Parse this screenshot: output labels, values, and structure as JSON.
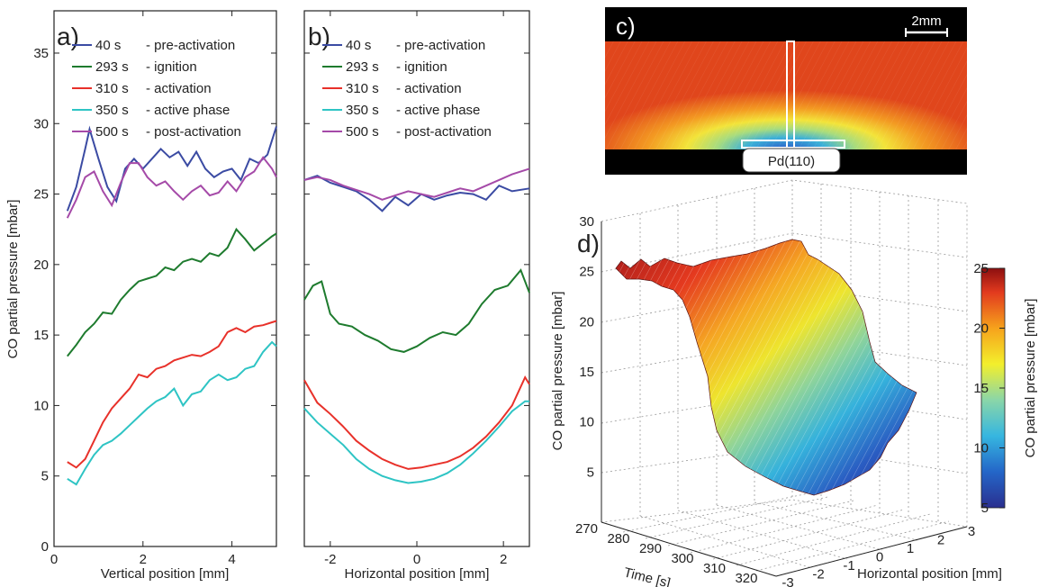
{
  "legend_entries": [
    {
      "time": "40 s",
      "label": "- pre-activation",
      "color": "#3b4ba3"
    },
    {
      "time": "293 s",
      "label": "- ignition",
      "color": "#1e7b2e"
    },
    {
      "time": "310 s",
      "label": "- activation",
      "color": "#e8312a"
    },
    {
      "time": "350 s",
      "label": "- active phase",
      "color": "#2ec4c4"
    },
    {
      "time": "500 s",
      "label": "- post-activation",
      "color": "#a54aa8"
    }
  ],
  "chart_data": [
    {
      "panel": "a)",
      "type": "line",
      "xlabel": "Vertical position [mm]",
      "ylabel": "CO partial pressure [mbar]",
      "xlim": [
        0,
        5
      ],
      "ylim": [
        0,
        38
      ],
      "xticks": [
        0,
        2,
        4
      ],
      "yticks": [
        0,
        5,
        10,
        15,
        20,
        25,
        30,
        35
      ],
      "grid": false,
      "legend_position": "top-left",
      "series": [
        {
          "name": "40 s - pre-activation",
          "color": "#3b4ba3",
          "x": [
            0.3,
            0.5,
            0.7,
            0.8,
            1.0,
            1.2,
            1.4,
            1.6,
            1.8,
            2.0,
            2.2,
            2.4,
            2.6,
            2.8,
            3.0,
            3.2,
            3.4,
            3.6,
            3.8,
            4.0,
            4.2,
            4.4,
            4.6,
            4.8,
            5.0
          ],
          "y": [
            23.8,
            25.5,
            28.2,
            29.6,
            27.5,
            25.5,
            24.5,
            26.8,
            27.5,
            26.8,
            27.5,
            28.2,
            27.6,
            28.0,
            27.0,
            28.0,
            26.8,
            26.2,
            26.6,
            26.8,
            26.0,
            27.5,
            27.2,
            27.8,
            29.8
          ]
        },
        {
          "name": "293 s - ignition",
          "color": "#1e7b2e",
          "x": [
            0.3,
            0.5,
            0.7,
            0.9,
            1.1,
            1.3,
            1.5,
            1.7,
            1.9,
            2.1,
            2.3,
            2.5,
            2.7,
            2.9,
            3.1,
            3.3,
            3.5,
            3.7,
            3.9,
            4.1,
            4.3,
            4.5,
            4.7,
            4.9,
            5.0
          ],
          "y": [
            13.5,
            14.3,
            15.2,
            15.8,
            16.6,
            16.5,
            17.5,
            18.2,
            18.8,
            19.0,
            19.2,
            19.8,
            19.6,
            20.2,
            20.4,
            20.2,
            20.8,
            20.6,
            21.2,
            22.5,
            21.8,
            21.0,
            21.5,
            22.0,
            22.2
          ]
        },
        {
          "name": "310 s - activation",
          "color": "#e8312a",
          "x": [
            0.3,
            0.5,
            0.7,
            0.9,
            1.1,
            1.3,
            1.5,
            1.7,
            1.9,
            2.1,
            2.3,
            2.5,
            2.7,
            2.9,
            3.1,
            3.3,
            3.5,
            3.7,
            3.9,
            4.1,
            4.3,
            4.5,
            4.7,
            4.9,
            5.0
          ],
          "y": [
            6.0,
            5.6,
            6.2,
            7.5,
            8.8,
            9.8,
            10.5,
            11.2,
            12.2,
            12.0,
            12.6,
            12.8,
            13.2,
            13.4,
            13.6,
            13.5,
            13.8,
            14.2,
            15.2,
            15.5,
            15.2,
            15.6,
            15.7,
            15.9,
            16.0
          ]
        },
        {
          "name": "350 s - active phase",
          "color": "#2ec4c4",
          "x": [
            0.3,
            0.5,
            0.7,
            0.9,
            1.1,
            1.3,
            1.5,
            1.7,
            1.9,
            2.1,
            2.3,
            2.5,
            2.7,
            2.9,
            3.1,
            3.3,
            3.5,
            3.7,
            3.9,
            4.1,
            4.3,
            4.5,
            4.7,
            4.9,
            5.0
          ],
          "y": [
            4.8,
            4.4,
            5.5,
            6.5,
            7.2,
            7.5,
            8.0,
            8.6,
            9.2,
            9.8,
            10.3,
            10.6,
            11.2,
            10.0,
            10.8,
            11.0,
            11.8,
            12.2,
            11.8,
            12.0,
            12.6,
            12.8,
            13.8,
            14.5,
            14.2
          ]
        },
        {
          "name": "500 s - post-activation",
          "color": "#a54aa8",
          "x": [
            0.3,
            0.5,
            0.7,
            0.9,
            1.1,
            1.3,
            1.5,
            1.7,
            1.9,
            2.1,
            2.3,
            2.5,
            2.7,
            2.9,
            3.1,
            3.3,
            3.5,
            3.7,
            3.9,
            4.1,
            4.3,
            4.5,
            4.7,
            4.9,
            5.0
          ],
          "y": [
            23.3,
            24.6,
            26.2,
            26.6,
            25.2,
            24.2,
            25.8,
            27.2,
            27.2,
            26.2,
            25.6,
            25.9,
            25.2,
            24.6,
            25.2,
            25.6,
            24.9,
            25.1,
            25.9,
            25.2,
            26.2,
            26.6,
            27.6,
            26.8,
            26.2
          ]
        }
      ]
    },
    {
      "panel": "b)",
      "type": "line",
      "xlabel": "Horizontal position [mm]",
      "ylabel": "",
      "xlim": [
        -2.6,
        2.6
      ],
      "ylim": [
        0,
        38
      ],
      "xticks": [
        -2,
        0,
        2
      ],
      "grid": false,
      "legend_position": "top-left",
      "series": [
        {
          "name": "40 s - pre-activation",
          "color": "#3b4ba3",
          "x": [
            -2.6,
            -2.3,
            -2.0,
            -1.7,
            -1.4,
            -1.1,
            -0.8,
            -0.5,
            -0.2,
            0.1,
            0.4,
            0.7,
            1.0,
            1.3,
            1.6,
            1.9,
            2.2,
            2.6
          ],
          "y": [
            26.0,
            26.3,
            25.8,
            25.5,
            25.2,
            24.6,
            23.8,
            24.8,
            24.2,
            25.0,
            24.6,
            24.9,
            25.1,
            25.0,
            24.6,
            25.6,
            25.2,
            25.4
          ]
        },
        {
          "name": "293 s - ignition",
          "color": "#1e7b2e",
          "x": [
            -2.6,
            -2.4,
            -2.2,
            -2.0,
            -1.8,
            -1.5,
            -1.2,
            -0.9,
            -0.6,
            -0.3,
            0.0,
            0.3,
            0.6,
            0.9,
            1.2,
            1.5,
            1.8,
            2.1,
            2.4,
            2.6
          ],
          "y": [
            17.5,
            18.5,
            18.8,
            16.5,
            15.8,
            15.6,
            15.0,
            14.6,
            14.0,
            13.8,
            14.2,
            14.8,
            15.2,
            15.0,
            15.8,
            17.2,
            18.2,
            18.5,
            19.6,
            18.0
          ]
        },
        {
          "name": "310 s - activation",
          "color": "#e8312a",
          "x": [
            -2.6,
            -2.3,
            -2.0,
            -1.7,
            -1.4,
            -1.1,
            -0.8,
            -0.5,
            -0.2,
            0.1,
            0.4,
            0.7,
            1.0,
            1.3,
            1.6,
            1.9,
            2.2,
            2.5,
            2.6
          ],
          "y": [
            11.8,
            10.2,
            9.4,
            8.5,
            7.5,
            6.8,
            6.2,
            5.8,
            5.5,
            5.6,
            5.8,
            6.0,
            6.4,
            7.0,
            7.8,
            8.8,
            10.0,
            12.0,
            11.5
          ]
        },
        {
          "name": "350 s - active phase",
          "color": "#2ec4c4",
          "x": [
            -2.6,
            -2.3,
            -2.0,
            -1.7,
            -1.4,
            -1.1,
            -0.8,
            -0.5,
            -0.2,
            0.1,
            0.4,
            0.7,
            1.0,
            1.3,
            1.6,
            1.9,
            2.2,
            2.5,
            2.6
          ],
          "y": [
            9.8,
            8.8,
            8.0,
            7.2,
            6.2,
            5.5,
            5.0,
            4.7,
            4.5,
            4.6,
            4.8,
            5.2,
            5.8,
            6.6,
            7.5,
            8.5,
            9.6,
            10.3,
            10.3
          ]
        },
        {
          "name": "500 s - post-activation",
          "color": "#a54aa8",
          "x": [
            -2.6,
            -2.3,
            -2.0,
            -1.7,
            -1.4,
            -1.1,
            -0.8,
            -0.5,
            -0.2,
            0.1,
            0.4,
            0.7,
            1.0,
            1.3,
            1.6,
            1.9,
            2.2,
            2.6
          ],
          "y": [
            26.0,
            26.2,
            26.0,
            25.6,
            25.3,
            25.0,
            24.6,
            24.9,
            25.2,
            25.0,
            24.8,
            25.1,
            25.4,
            25.2,
            25.6,
            26.0,
            26.4,
            26.8
          ]
        }
      ]
    },
    {
      "panel": "d)",
      "type": "surface",
      "xlabel": "Time [s]",
      "ylabel": "Horizontal position [mm]",
      "zlabel": "CO partial pressure [mbar]",
      "xlim": [
        270,
        320
      ],
      "ylim": [
        -3,
        3
      ],
      "zlim": [
        0,
        30
      ],
      "xticks": [
        270,
        280,
        290,
        300,
        310,
        320
      ],
      "yticks": [
        -3,
        -2,
        -1,
        0,
        1,
        2,
        3
      ],
      "zticks": [
        5,
        10,
        15,
        20,
        25,
        30
      ],
      "grid": true,
      "colorbar": {
        "label": "CO partial pressure [mbar]",
        "ticks": [
          5,
          10,
          15,
          20,
          25
        ],
        "range": [
          5,
          25
        ]
      },
      "description_values": {
        "time": [
          272,
          281,
          290,
          296,
          300,
          305,
          310,
          315,
          318
        ],
        "pressure_center": [
          25,
          25,
          24,
          23,
          14,
          6,
          4,
          4,
          4
        ]
      }
    }
  ],
  "panel_c": {
    "label": "c)",
    "scale_bar": "2mm",
    "sample_label": "Pd(110)"
  }
}
